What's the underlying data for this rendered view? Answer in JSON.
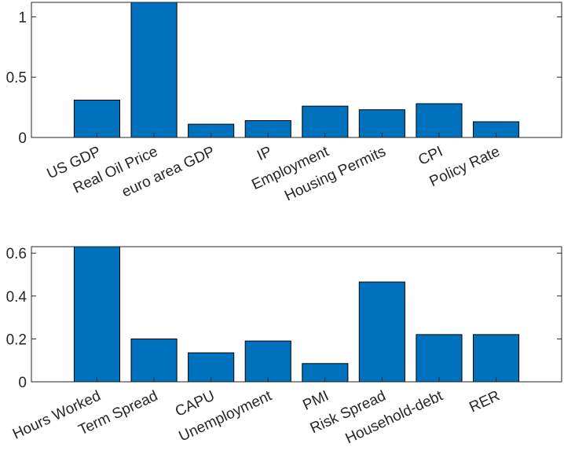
{
  "chart_data": [
    {
      "type": "bar",
      "categories": [
        "US GDP",
        "Real Oil Price",
        "euro area GDP",
        "IP",
        "Employment",
        "Housing Permits",
        "CPI",
        "Policy Rate"
      ],
      "values": [
        0.31,
        1.13,
        0.11,
        0.14,
        0.26,
        0.23,
        0.28,
        0.13
      ],
      "ylim": [
        0,
        1.12
      ],
      "yticks": [
        0,
        0.5,
        1
      ],
      "ytick_labels": [
        "0",
        "0.5",
        "1"
      ],
      "bar_color": "#0072BD",
      "grid": false
    },
    {
      "type": "bar",
      "categories": [
        "Hours Worked",
        "Term Spread",
        "CAPU",
        "Unemployment",
        "PMI",
        "Risk Spread",
        "Household-debt",
        "RER"
      ],
      "values": [
        0.63,
        0.2,
        0.135,
        0.19,
        0.085,
        0.465,
        0.22,
        0.22
      ],
      "ylim": [
        0,
        0.63
      ],
      "yticks": [
        0,
        0.2,
        0.4,
        0.6
      ],
      "ytick_labels": [
        "0",
        "0.2",
        "0.4",
        "0.6"
      ],
      "bar_color": "#0072BD",
      "grid": false
    }
  ]
}
